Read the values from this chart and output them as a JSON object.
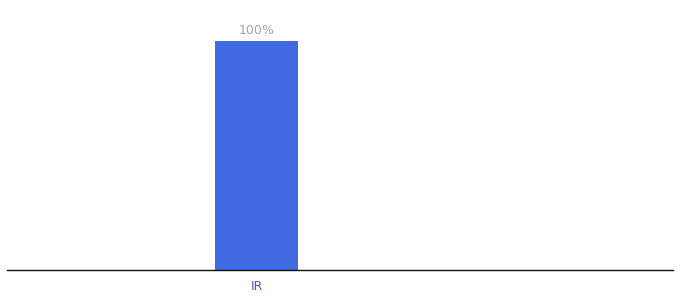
{
  "categories": [
    "IR"
  ],
  "values": [
    100
  ],
  "bar_color": "#4169E1",
  "bar_width": 0.5,
  "label_text": "100%",
  "label_color": "#a0a0b8",
  "label_fontsize": 9,
  "tick_label_color": "#4455cc",
  "tick_fontsize": 9,
  "ylim": [
    0,
    115
  ],
  "xlim": [
    -1.5,
    2.5
  ],
  "background_color": "#ffffff",
  "spine_color": "#111111",
  "fig_width": 6.8,
  "fig_height": 3.0,
  "dpi": 100
}
